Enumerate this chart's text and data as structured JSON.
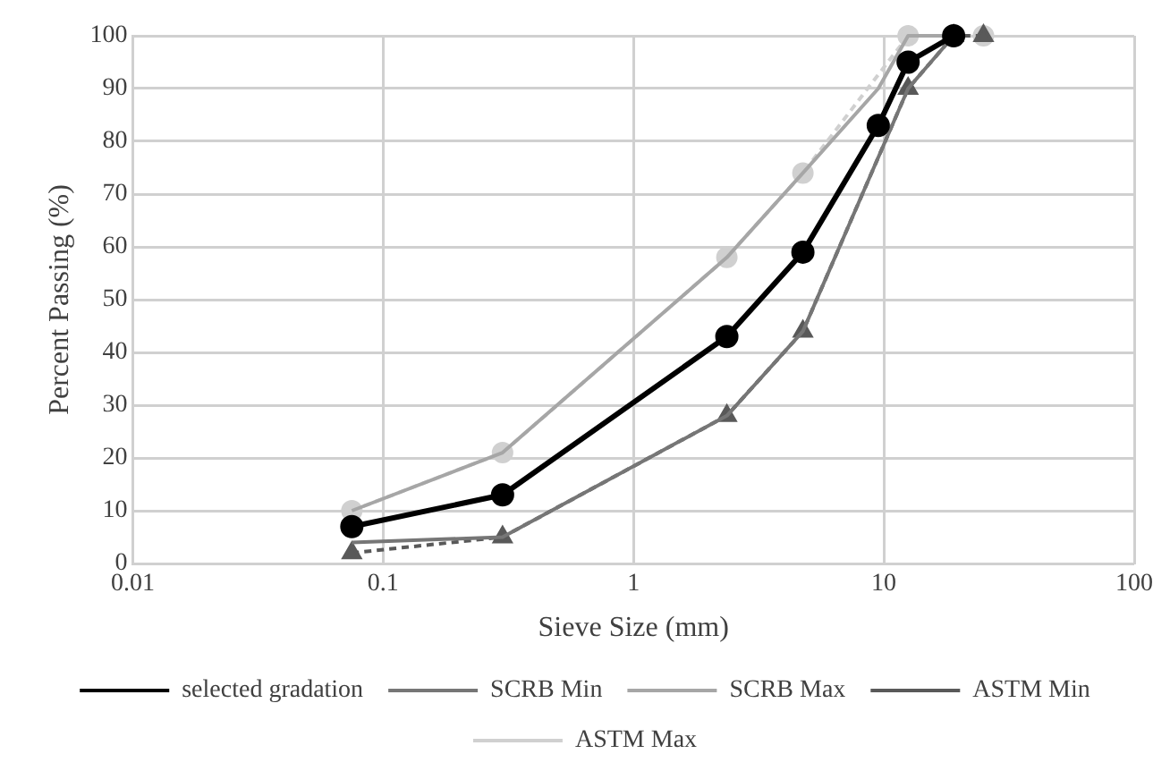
{
  "chart_data": {
    "type": "line",
    "xlabel": "Sieve Size (mm)",
    "ylabel": "Percent Passing (%)",
    "log": "x",
    "xlim": [
      0.01,
      100
    ],
    "xticks": [
      0.01,
      0.1,
      1,
      10,
      100
    ],
    "ylim": [
      0,
      100
    ],
    "yticks": [
      0,
      10,
      20,
      30,
      40,
      50,
      60,
      70,
      80,
      90,
      100
    ],
    "grid": true,
    "legend": "bottom",
    "series": [
      {
        "name": "selected gradation",
        "color": "#000000",
        "marker": "circle",
        "line_style": "solid",
        "x": [
          0.075,
          0.3,
          2.36,
          4.75,
          9.5,
          12.5,
          19
        ],
        "values": [
          7,
          13,
          43,
          59,
          83,
          95,
          100
        ]
      },
      {
        "name": "SCRB Min",
        "color": "#767676",
        "marker": "none",
        "line_style": "solid",
        "x": [
          0.075,
          0.3,
          2.36,
          4.75,
          12.5,
          19
        ],
        "values": [
          4,
          5,
          28,
          44,
          90,
          100
        ]
      },
      {
        "name": "SCRB Max",
        "color": "#a6a6a6",
        "marker": "none",
        "line_style": "solid",
        "x": [
          0.075,
          0.3,
          2.36,
          4.75,
          9.5,
          12.5,
          19
        ],
        "values": [
          10,
          21,
          58,
          74,
          90,
          100,
          100
        ]
      },
      {
        "name": "ASTM Min",
        "color": "#595959",
        "marker": "triangle",
        "line_style": "dashed",
        "x": [
          0.075,
          0.3,
          2.36,
          4.75,
          12.5,
          19,
          25
        ],
        "values": [
          2,
          5,
          28,
          44,
          90,
          100,
          100
        ]
      },
      {
        "name": "ASTM Max",
        "color": "#d0d0d0",
        "marker": "circle",
        "line_style": "dashed",
        "x": [
          0.075,
          0.3,
          2.36,
          4.75,
          12.5,
          19,
          25
        ],
        "values": [
          10,
          21,
          58,
          74,
          100,
          100,
          100
        ]
      }
    ]
  }
}
